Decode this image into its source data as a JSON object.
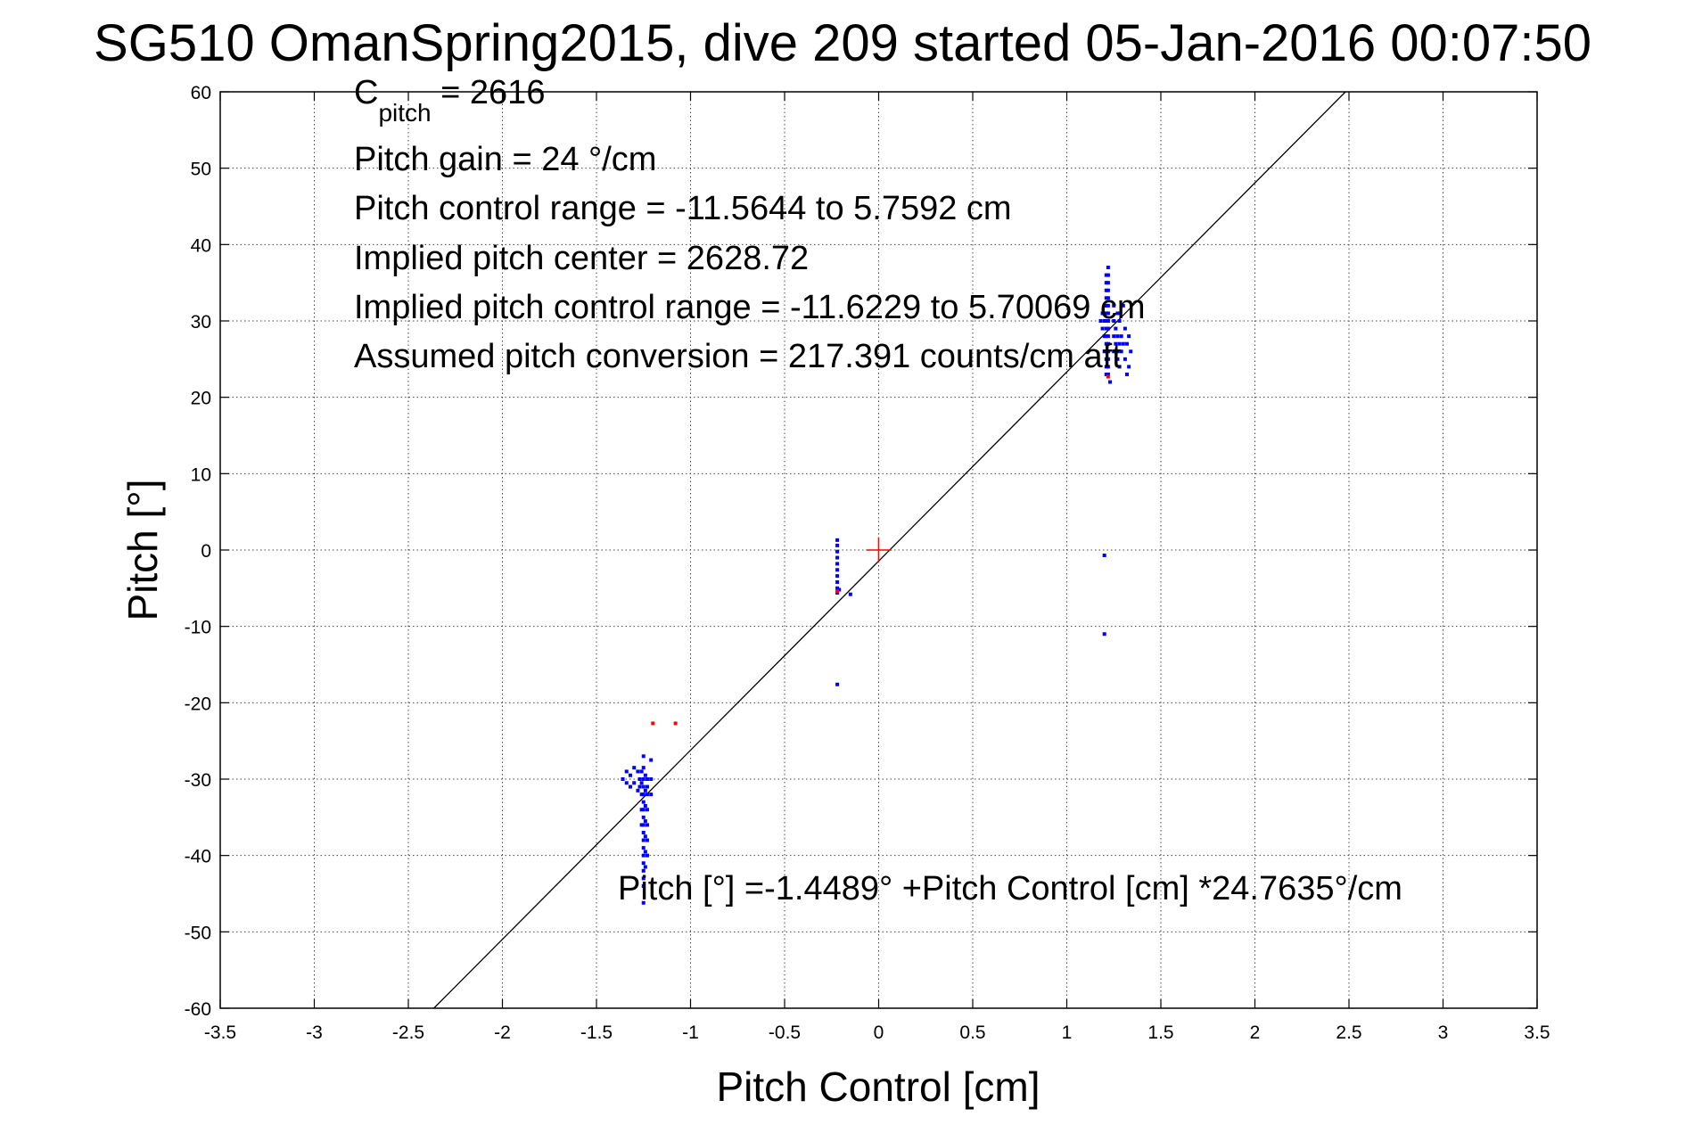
{
  "chart_data": {
    "type": "scatter",
    "title": "SG510 OmanSpring2015, dive 209 started 05-Jan-2016 00:07:50",
    "xlabel": "Pitch Control [cm]",
    "ylabel": "Pitch [°]",
    "xlim": [
      -3.5,
      3.5
    ],
    "ylim": [
      -60,
      60
    ],
    "xticks": [
      -3.5,
      -3,
      -2.5,
      -2,
      -1.5,
      -1,
      -0.5,
      0,
      0.5,
      1,
      1.5,
      2,
      2.5,
      3,
      3.5
    ],
    "yticks": [
      -60,
      -50,
      -40,
      -30,
      -20,
      -10,
      0,
      10,
      20,
      30,
      40,
      50,
      60
    ],
    "grid": true,
    "colors": {
      "primary": "#0000ff",
      "excluded": "#ff0000",
      "fit": "#000000",
      "center": "#ff0000"
    },
    "annotations": {
      "c_pitch_main": "C",
      "c_pitch_sub": "pitch",
      "c_pitch_value": " = 2616",
      "pitch_gain": "Pitch gain = 24 °/cm",
      "pitch_control_range": "Pitch control range = -11.5644 to 5.7592 cm",
      "implied_pitch_center": "Implied pitch center = 2628.72",
      "implied_pitch_control_range": "Implied pitch control range = -11.6229 to 5.70069 cm",
      "assumed_pitch_conversion": "Assumed pitch conversion = 217.391 counts/cm aft",
      "fit_equation": "Pitch [°] =-1.4489° +Pitch Control [cm] *24.7635°/cm"
    },
    "fit_line": {
      "intercept": -1.4489,
      "slope": 24.7635
    },
    "center_marker": {
      "x": 0,
      "y": 0
    },
    "series": [
      {
        "points": [
          [
            1.21,
            36
          ],
          [
            1.21,
            35
          ],
          [
            1.21,
            34
          ],
          [
            1.21,
            33
          ],
          [
            1.21,
            32
          ],
          [
            1.21,
            31
          ],
          [
            1.21,
            30
          ],
          [
            1.21,
            29
          ],
          [
            1.21,
            28
          ],
          [
            1.21,
            27
          ],
          [
            1.21,
            26
          ],
          [
            1.21,
            25
          ],
          [
            1.21,
            24
          ],
          [
            1.21,
            23
          ],
          [
            1.22,
            37
          ],
          [
            1.22,
            36
          ],
          [
            1.22,
            35
          ],
          [
            1.22,
            34
          ],
          [
            1.22,
            33
          ],
          [
            1.22,
            32
          ],
          [
            1.22,
            31
          ],
          [
            1.22,
            30
          ],
          [
            1.22,
            29
          ],
          [
            1.22,
            28
          ],
          [
            1.22,
            27
          ],
          [
            1.22,
            26
          ],
          [
            1.22,
            25
          ],
          [
            1.22,
            24
          ],
          [
            1.22,
            23
          ],
          [
            1.23,
            22
          ],
          [
            1.2,
            32
          ],
          [
            1.2,
            30
          ],
          [
            1.2,
            28
          ],
          [
            1.2,
            26
          ],
          [
            1.19,
            31
          ],
          [
            1.19,
            29
          ],
          [
            1.18,
            30
          ],
          [
            1.25,
            32
          ],
          [
            1.25,
            30
          ],
          [
            1.25,
            28
          ],
          [
            1.25,
            26
          ],
          [
            1.26,
            29
          ],
          [
            1.26,
            27
          ],
          [
            1.27,
            31
          ],
          [
            1.27,
            28
          ],
          [
            1.27,
            26
          ],
          [
            1.27,
            25
          ],
          [
            1.28,
            30
          ],
          [
            1.28,
            27
          ],
          [
            1.28,
            24
          ],
          [
            1.29,
            28
          ],
          [
            1.29,
            26
          ],
          [
            1.3,
            32
          ],
          [
            1.3,
            27
          ],
          [
            1.31,
            29
          ],
          [
            1.31,
            25
          ],
          [
            1.32,
            27
          ],
          [
            1.32,
            23
          ],
          [
            1.33,
            28
          ],
          [
            1.33,
            24
          ],
          [
            1.34,
            26
          ],
          [
            1.2,
            -0.7
          ],
          [
            1.2,
            -11
          ],
          [
            -0.22,
            1.3
          ],
          [
            -0.22,
            0.6
          ],
          [
            -0.22,
            -0.2
          ],
          [
            -0.22,
            -1
          ],
          [
            -0.22,
            -1.8
          ],
          [
            -0.22,
            -2.6
          ],
          [
            -0.22,
            -3.4
          ],
          [
            -0.22,
            -4.2
          ],
          [
            -0.22,
            -5
          ],
          [
            -0.22,
            -5.6
          ],
          [
            -0.21,
            -5.2
          ],
          [
            -0.15,
            -5.8
          ],
          [
            -0.22,
            -17.6
          ],
          [
            -1.25,
            -27
          ],
          [
            -1.25,
            -28.5
          ],
          [
            -1.25,
            -30
          ],
          [
            -1.25,
            -31
          ],
          [
            -1.25,
            -32
          ],
          [
            -1.25,
            -33
          ],
          [
            -1.25,
            -34
          ],
          [
            -1.25,
            -35
          ],
          [
            -1.25,
            -36
          ],
          [
            -1.25,
            -37
          ],
          [
            -1.25,
            -38
          ],
          [
            -1.25,
            -39
          ],
          [
            -1.25,
            -40
          ],
          [
            -1.25,
            -41
          ],
          [
            -1.25,
            -42
          ],
          [
            -1.25,
            -43
          ],
          [
            -1.25,
            -44
          ],
          [
            -1.25,
            -46.2
          ],
          [
            -1.24,
            -29.5
          ],
          [
            -1.24,
            -31.5
          ],
          [
            -1.24,
            -33.5
          ],
          [
            -1.24,
            -35.5
          ],
          [
            -1.24,
            -37.5
          ],
          [
            -1.24,
            -39.5
          ],
          [
            -1.24,
            -41.5
          ],
          [
            -1.23,
            -30
          ],
          [
            -1.23,
            -31
          ],
          [
            -1.23,
            -32
          ],
          [
            -1.23,
            -34
          ],
          [
            -1.23,
            -36
          ],
          [
            -1.23,
            -38
          ],
          [
            -1.23,
            -40
          ],
          [
            -1.26,
            -29
          ],
          [
            -1.26,
            -30.5
          ],
          [
            -1.26,
            -32
          ],
          [
            -1.26,
            -34
          ],
          [
            -1.26,
            -36
          ],
          [
            -1.27,
            -30
          ],
          [
            -1.27,
            -31
          ],
          [
            -1.28,
            -29
          ],
          [
            -1.28,
            -31.5
          ],
          [
            -1.3,
            -28.5
          ],
          [
            -1.3,
            -30.5
          ],
          [
            -1.32,
            -29.5
          ],
          [
            -1.32,
            -31
          ],
          [
            -1.34,
            -29
          ],
          [
            -1.34,
            -30.5
          ],
          [
            -1.36,
            -30
          ],
          [
            -1.21,
            -27.5
          ],
          [
            -1.21,
            -30
          ],
          [
            -1.21,
            -32
          ]
        ]
      },
      {
        "points": [
          [
            -1.2,
            -22.7
          ],
          [
            -1.08,
            -22.7
          ],
          [
            1.22,
            22.7
          ],
          [
            -0.22,
            -5.4
          ]
        ]
      }
    ]
  }
}
